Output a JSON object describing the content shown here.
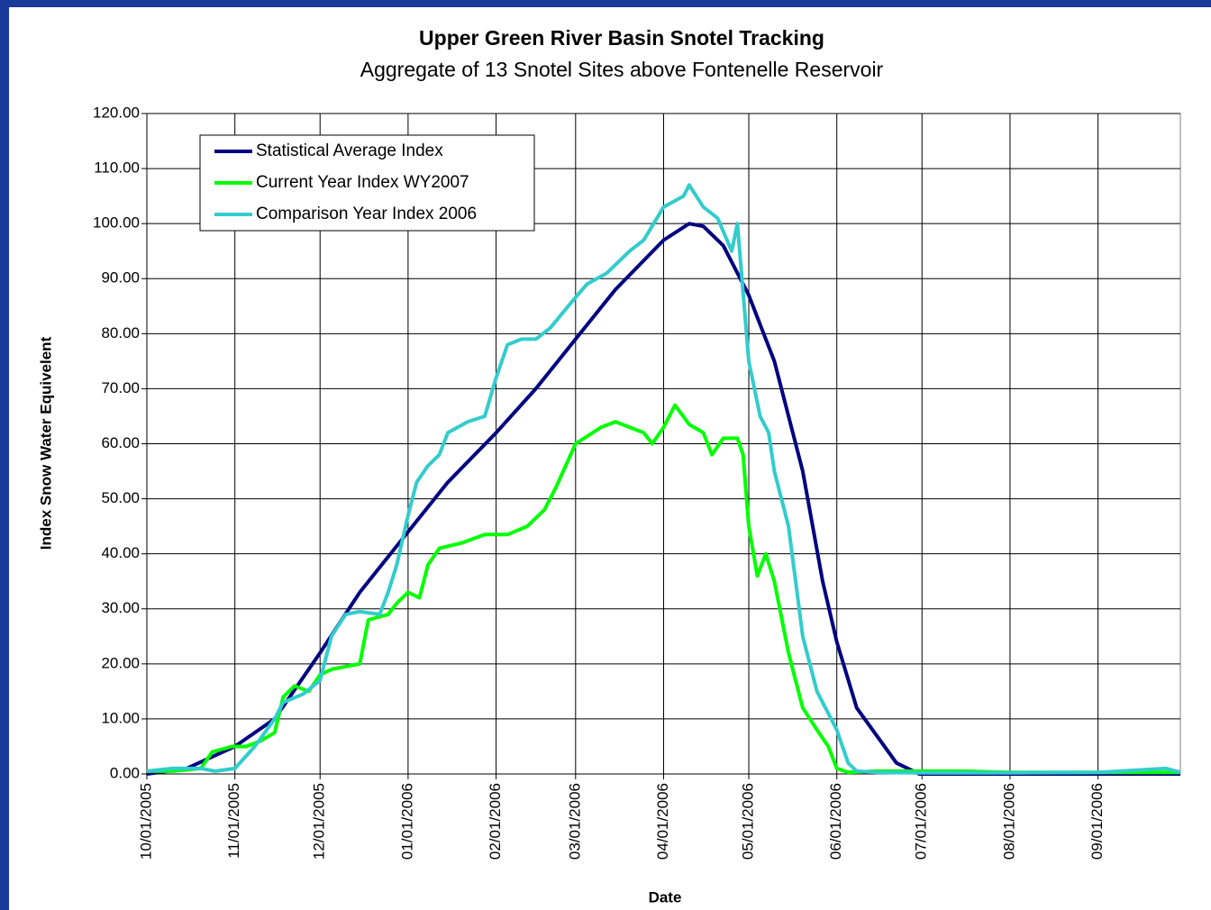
{
  "chart_data": {
    "type": "line",
    "title": "Upper Green River Basin Snotel Tracking",
    "subtitle": "Aggregate of 13 Snotel Sites above Fontenelle Reservoir",
    "x_label": "Date",
    "y_label": "Index Snow Water Equivelent",
    "xlim": [
      "10/01/2005",
      "09/30/2006"
    ],
    "xticks": [
      "10/01/2005",
      "11/01/2005",
      "12/01/2005",
      "01/01/2006",
      "02/01/2006",
      "03/01/2006",
      "04/01/2006",
      "05/01/2006",
      "06/01/2006",
      "07/01/2006",
      "08/01/2006",
      "09/01/2006"
    ],
    "ylim": [
      0,
      120
    ],
    "yticks": [
      {
        "value": 0,
        "label": "0.00"
      },
      {
        "value": 10,
        "label": "10.00"
      },
      {
        "value": 20,
        "label": "20.00"
      },
      {
        "value": 30,
        "label": "30.00"
      },
      {
        "value": 40,
        "label": "40.00"
      },
      {
        "value": 50,
        "label": "50.00"
      },
      {
        "value": 60,
        "label": "60.00"
      },
      {
        "value": 70,
        "label": "70.00"
      },
      {
        "value": 80,
        "label": "80.00"
      },
      {
        "value": 90,
        "label": "90.00"
      },
      {
        "value": 100,
        "label": "100.00"
      },
      {
        "value": 110,
        "label": "110.00"
      },
      {
        "value": 120,
        "label": "120.00"
      }
    ],
    "grid": true,
    "legend": "upper left",
    "series": [
      {
        "name": "Statistical Average Index",
        "color": "#000080",
        "x": [
          "10/01/2005",
          "10/15/2005",
          "11/01/2005",
          "11/15/2005",
          "12/01/2005",
          "12/15/2005",
          "01/01/2006",
          "01/15/2006",
          "02/01/2006",
          "02/15/2006",
          "03/01/2006",
          "03/15/2006",
          "04/01/2006",
          "04/10/2006",
          "04/15/2006",
          "04/22/2006",
          "05/01/2006",
          "05/10/2006",
          "05/20/2006",
          "05/27/2006",
          "06/01/2006",
          "06/08/2006",
          "06/15/2006",
          "06/22/2006",
          "06/30/2006",
          "07/31/2006",
          "08/31/2006",
          "09/30/2006"
        ],
        "values": [
          0,
          1,
          5,
          10,
          22,
          33,
          44,
          53,
          62,
          70,
          79,
          88,
          97,
          100,
          99.5,
          96,
          87,
          75,
          55,
          35,
          24,
          12,
          7,
          2,
          0,
          0,
          0,
          0
        ]
      },
      {
        "name": "Current Year Index WY2007",
        "color": "#00ff00",
        "x": [
          "10/01/2005",
          "10/10/2005",
          "10/20/2005",
          "10/24/2005",
          "10/31/2005",
          "11/05/2005",
          "11/10/2005",
          "11/15/2005",
          "11/18/2005",
          "11/22/2005",
          "11/27/2005",
          "12/01/2005",
          "12/05/2005",
          "12/15/2005",
          "12/18/2005",
          "12/25/2005",
          "12/28/2005",
          "01/01/2006",
          "01/05/2006",
          "01/08/2006",
          "01/12/2006",
          "01/20/2006",
          "01/28/2006",
          "02/05/2006",
          "02/12/2006",
          "02/18/2006",
          "02/22/2006",
          "03/01/2006",
          "03/10/2006",
          "03/15/2006",
          "03/25/2006",
          "03/28/2006",
          "04/01/2006",
          "04/05/2006",
          "04/10/2006",
          "04/15/2006",
          "04/18/2006",
          "04/22/2006",
          "04/27/2006",
          "04/29/2006",
          "05/01/2006",
          "05/04/2006",
          "05/07/2006",
          "05/10/2006",
          "05/15/2006",
          "05/20/2006",
          "05/25/2006",
          "05/29/2006",
          "06/01/2006",
          "06/05/2006",
          "06/15/2006",
          "07/15/2006",
          "08/01/2006",
          "09/01/2006",
          "09/30/2006"
        ],
        "values": [
          0.5,
          0.5,
          1,
          4,
          5,
          5,
          6,
          7.5,
          14,
          16,
          15,
          18,
          19,
          20,
          28,
          29,
          31,
          33,
          32,
          38,
          41,
          42,
          43.5,
          43.5,
          45,
          48,
          52,
          60,
          63,
          64,
          62,
          60,
          63,
          67,
          63.5,
          62,
          58,
          61,
          61,
          58,
          45,
          36,
          40,
          35,
          22,
          12,
          8,
          5,
          1,
          0.3,
          0.5,
          0.5,
          0.3,
          0.3,
          0.3
        ]
      },
      {
        "name": "Comparison Year Index 2006",
        "color": "#33cccc",
        "x": [
          "10/01/2005",
          "10/10/2005",
          "10/20/2005",
          "10/25/2005",
          "11/01/2005",
          "11/08/2005",
          "11/15/2005",
          "11/18/2005",
          "11/25/2005",
          "12/01/2005",
          "12/05/2005",
          "12/10/2005",
          "12/15/2005",
          "12/22/2005",
          "12/25/2005",
          "12/28/2005",
          "01/01/2006",
          "01/04/2006",
          "01/08/2006",
          "01/12/2006",
          "01/15/2006",
          "01/22/2006",
          "01/28/2006",
          "02/01/2006",
          "02/05/2006",
          "02/10/2006",
          "02/15/2006",
          "02/20/2006",
          "02/28/2006",
          "03/05/2006",
          "03/12/2006",
          "03/20/2006",
          "03/25/2006",
          "04/01/2006",
          "04/08/2006",
          "04/10/2006",
          "04/15/2006",
          "04/20/2006",
          "04/25/2006",
          "04/27/2006",
          "05/01/2006",
          "05/05/2006",
          "05/08/2006",
          "05/10/2006",
          "05/15/2006",
          "05/20/2006",
          "05/25/2006",
          "05/29/2006",
          "06/01/2006",
          "06/05/2006",
          "06/08/2006",
          "06/15/2006",
          "07/01/2006",
          "08/01/2006",
          "09/01/2006",
          "09/25/2006",
          "09/30/2006"
        ],
        "values": [
          0.5,
          1,
          1,
          0.5,
          1,
          5,
          10,
          13,
          14.5,
          17,
          25,
          29,
          29.5,
          29,
          33,
          38,
          47,
          53,
          56,
          58,
          62,
          64,
          65,
          72,
          78,
          79,
          79,
          81,
          86,
          89,
          91,
          95,
          97,
          103,
          105,
          107,
          103,
          101,
          95,
          100,
          75,
          65,
          62,
          55,
          45,
          25,
          15,
          11,
          8,
          2,
          0.5,
          0.3,
          0.2,
          0.2,
          0.3,
          1,
          0.3
        ]
      }
    ]
  }
}
